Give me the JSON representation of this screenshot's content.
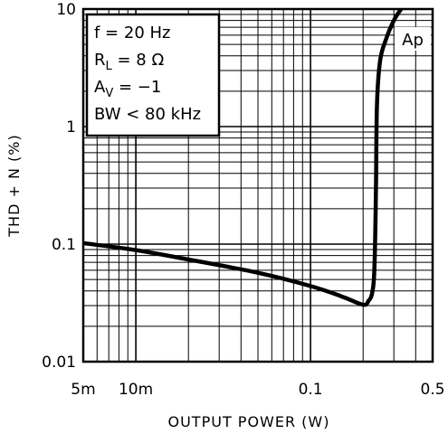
{
  "chart_data": {
    "type": "line",
    "title": "",
    "xlabel": "OUTPUT POWER (W)",
    "ylabel": "THD + N (%)",
    "x_scale": "log",
    "y_scale": "log",
    "xlim": [
      0.005,
      0.5
    ],
    "ylim": [
      0.01,
      10
    ],
    "grid": true,
    "x_ticks": [
      {
        "value": 0.005,
        "label": "5m"
      },
      {
        "value": 0.01,
        "label": "10m"
      },
      {
        "value": 0.1,
        "label": "0.1"
      },
      {
        "value": 0.5,
        "label": "0.5"
      }
    ],
    "y_ticks": [
      {
        "value": 0.01,
        "label": "0.01"
      },
      {
        "value": 0.1,
        "label": "0.1"
      },
      {
        "value": 1,
        "label": "1"
      },
      {
        "value": 10,
        "label": "10"
      }
    ],
    "legend_box": {
      "placement": "top-left",
      "lines": [
        {
          "main": "f = 20 Hz",
          "sub": ""
        },
        {
          "main": "R",
          "sub": "L",
          "tail": " = 8 Ω"
        },
        {
          "main": "A",
          "sub": "V",
          "tail": " = −1"
        },
        {
          "main": "BW < 80 kHz",
          "sub": ""
        }
      ]
    },
    "series": [
      {
        "name": "Ap",
        "x": [
          0.005,
          0.01,
          0.02,
          0.05,
          0.1,
          0.15,
          0.2,
          0.215,
          0.225,
          0.232,
          0.237,
          0.24,
          0.25,
          0.27,
          0.3,
          0.33
        ],
        "y": [
          0.102,
          0.089,
          0.074,
          0.057,
          0.044,
          0.036,
          0.0305,
          0.033,
          0.038,
          0.06,
          0.3,
          1.5,
          3.6,
          5.5,
          8.0,
          10.0
        ]
      }
    ]
  }
}
